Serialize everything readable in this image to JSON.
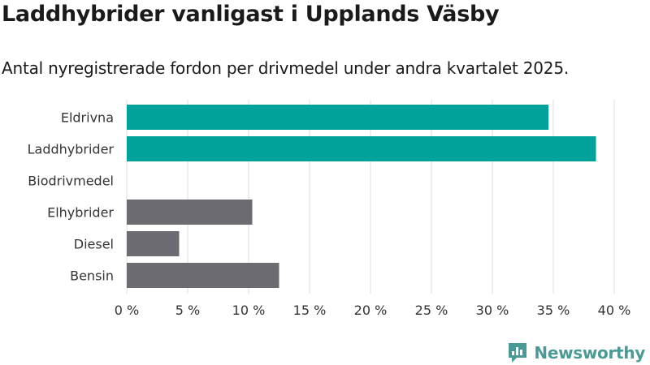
{
  "title": "Laddhybrider vanligast i Upplands Väsby",
  "subtitle": "Antal nyregistrerade fordon per drivmedel under andra kvartalet 2025.",
  "brand": {
    "name": "Newsworthy",
    "icon": "newsworthy-logo-icon"
  },
  "colors": {
    "highlight": "#00a29a",
    "default": "#6d6b72",
    "grid": "#dcdcdc"
  },
  "chart_data": {
    "type": "bar",
    "orientation": "horizontal",
    "categories": [
      "Eldrivna",
      "Laddhybrider",
      "Biodrivmedel",
      "Elhybrider",
      "Diesel",
      "Bensin"
    ],
    "values": [
      34.6,
      38.5,
      0,
      10.3,
      4.3,
      12.5
    ],
    "bar_colors": [
      "#00a29a",
      "#00a29a",
      "#6d6b72",
      "#6d6b72",
      "#6d6b72",
      "#6d6b72"
    ],
    "xlim": [
      0,
      40
    ],
    "xticks": [
      0,
      5,
      10,
      15,
      20,
      25,
      30,
      35,
      40
    ],
    "tick_format": "{v} %",
    "grid": true,
    "xlabel": "",
    "ylabel": ""
  }
}
